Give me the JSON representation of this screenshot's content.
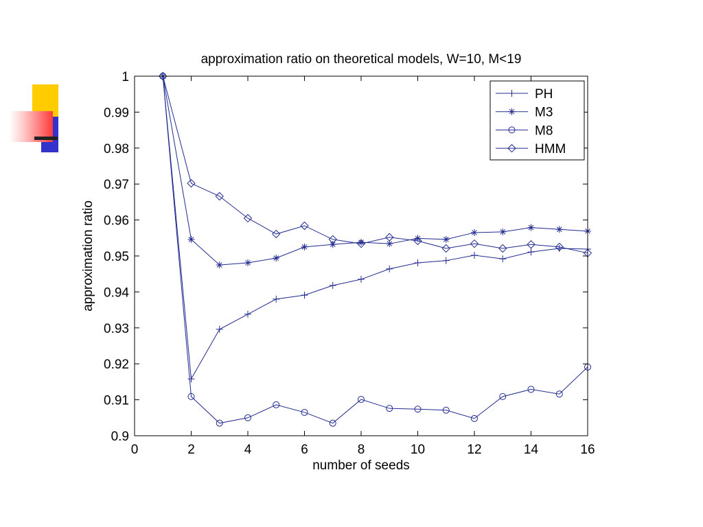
{
  "slide": {
    "decor_colors": {
      "yellow": "#ffcc00",
      "blue": "#3333cc",
      "red": "#ff3a3a",
      "bar": "#222222"
    }
  },
  "chart_data": {
    "type": "line",
    "title": "approximation ratio on theoretical models, W=10, M<19",
    "xlabel": "number of seeds",
    "ylabel": "approximation ratio",
    "xlim": [
      0,
      16
    ],
    "ylim": [
      0.9,
      1
    ],
    "x_ticks": [
      "0",
      "2",
      "4",
      "6",
      "8",
      "10",
      "12",
      "14",
      "16"
    ],
    "y_ticks": [
      "0.9",
      "0.91",
      "0.92",
      "0.93",
      "0.94",
      "0.95",
      "0.96",
      "0.97",
      "0.98",
      "0.99",
      "1"
    ],
    "grid": false,
    "legend_position": "top-right",
    "line_color": "#202a8f",
    "x": [
      1,
      2,
      3,
      4,
      5,
      6,
      7,
      8,
      9,
      10,
      11,
      12,
      13,
      14,
      15,
      16
    ],
    "series": [
      {
        "name": "PH",
        "marker": "plus",
        "values": [
          1.0,
          0.9158,
          0.9296,
          0.9338,
          0.938,
          0.9391,
          0.9418,
          0.9435,
          0.9464,
          0.9481,
          0.9487,
          0.9502,
          0.9492,
          0.9511,
          0.9521,
          0.9519
        ]
      },
      {
        "name": "M3",
        "marker": "star",
        "values": [
          1.0,
          0.9546,
          0.9475,
          0.9481,
          0.9494,
          0.9525,
          0.9532,
          0.9538,
          0.9534,
          0.9549,
          0.9546,
          0.9565,
          0.9567,
          0.9579,
          0.9574,
          0.9569
        ]
      },
      {
        "name": "M8",
        "marker": "circle",
        "values": [
          1.0,
          0.9109,
          0.9035,
          0.905,
          0.9086,
          0.9065,
          0.9035,
          0.9101,
          0.9076,
          0.9074,
          0.9071,
          0.9048,
          0.9109,
          0.9129,
          0.9116,
          0.9191
        ]
      },
      {
        "name": "HMM",
        "marker": "diamond",
        "values": [
          1.0,
          0.9702,
          0.9666,
          0.9605,
          0.9561,
          0.9584,
          0.9546,
          0.9534,
          0.9552,
          0.9542,
          0.9521,
          0.9534,
          0.9521,
          0.9532,
          0.9525,
          0.9508
        ]
      }
    ]
  }
}
